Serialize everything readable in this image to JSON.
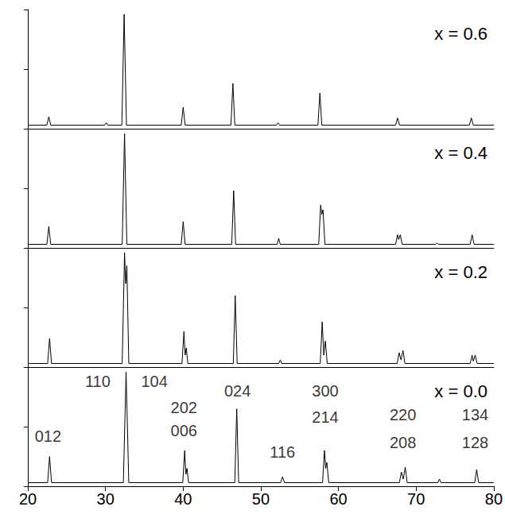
{
  "chart_data": {
    "type": "line",
    "xlim": [
      20,
      80
    ],
    "xticks": [
      20,
      30,
      40,
      50,
      60,
      70,
      80
    ],
    "ylim": [
      0,
      100
    ],
    "yticks": [
      0,
      50,
      100
    ],
    "tick_labels": "x",
    "grid": false,
    "color": "#000000",
    "series": [
      {
        "name": "x = 0.6",
        "x": [
          20,
          22.45,
          22.7,
          22.95,
          29.9,
          30.1,
          30.3,
          32.1,
          32.4,
          32.7,
          39.75,
          40.0,
          40.25,
          46.15,
          46.4,
          46.65,
          52.0,
          52.2,
          52.4,
          57.35,
          57.6,
          57.85,
          67.35,
          67.6,
          67.85,
          76.85,
          77.1,
          77.35,
          80
        ],
        "values": [
          3,
          3,
          10,
          3,
          3,
          5,
          3,
          3,
          96,
          3,
          3,
          18,
          3,
          3,
          38,
          3,
          3,
          5,
          3,
          3,
          30,
          3,
          3,
          9,
          3,
          3,
          9,
          3,
          3
        ]
      },
      {
        "name": "x = 0.4",
        "x": [
          20,
          22.45,
          22.7,
          22.95,
          32.15,
          32.45,
          32.75,
          39.75,
          40.0,
          40.25,
          46.25,
          46.5,
          46.75,
          52.1,
          52.3,
          52.5,
          57.45,
          57.7,
          57.85,
          58.0,
          58.25,
          67.35,
          67.6,
          67.75,
          67.95,
          68.2,
          72.5,
          72.7,
          72.9,
          76.95,
          77.2,
          77.45,
          80
        ],
        "values": [
          3,
          3,
          18,
          3,
          3,
          96,
          3,
          3,
          22,
          3,
          3,
          48,
          3,
          3,
          8,
          3,
          3,
          36,
          28,
          32,
          3,
          3,
          11,
          7,
          11,
          3,
          3,
          4,
          3,
          3,
          11,
          3,
          3
        ]
      },
      {
        "name": "x = 0.2",
        "x": [
          20,
          22.55,
          22.8,
          23.05,
          32.15,
          32.45,
          32.6,
          32.75,
          33.0,
          39.85,
          40.1,
          40.25,
          40.4,
          40.6,
          46.45,
          46.7,
          46.95,
          52.3,
          52.5,
          52.7,
          57.65,
          57.9,
          58.1,
          58.3,
          58.55,
          67.55,
          67.8,
          68.05,
          68.3,
          68.55,
          76.95,
          77.2,
          77.35,
          77.6,
          77.85,
          80
        ],
        "values": [
          3,
          3,
          24,
          3,
          3,
          96,
          70,
          85,
          3,
          3,
          30,
          10,
          16,
          3,
          3,
          60,
          3,
          3,
          6,
          3,
          3,
          38,
          10,
          22,
          3,
          3,
          12,
          6,
          14,
          3,
          3,
          10,
          5,
          10,
          3,
          3
        ]
      },
      {
        "name": "x = 0.0",
        "x": [
          20,
          22.55,
          22.8,
          23.05,
          32.3,
          32.65,
          33.0,
          39.95,
          40.2,
          40.35,
          40.5,
          40.7,
          46.65,
          46.9,
          47.15,
          52.55,
          52.8,
          53.05,
          57.95,
          58.2,
          58.35,
          58.5,
          58.75,
          67.85,
          68.1,
          68.35,
          68.6,
          68.85,
          72.8,
          73.0,
          73.2,
          77.55,
          77.8,
          78.05,
          80
        ],
        "values": [
          3,
          3,
          25,
          3,
          3,
          96,
          3,
          3,
          30,
          10,
          15,
          3,
          3,
          65,
          3,
          3,
          8,
          3,
          3,
          30,
          15,
          20,
          3,
          3,
          12,
          6,
          16,
          3,
          3,
          6,
          3,
          3,
          14,
          3,
          3
        ],
        "annotations": [
          {
            "text": "012",
            "x": 22.6,
            "y": 42
          },
          {
            "text": "110",
            "x": 29.0,
            "y": 88
          },
          {
            "text": "104",
            "x": 36.3,
            "y": 88
          },
          {
            "text": "202",
            "x": 40.1,
            "y": 66
          },
          {
            "text": "006",
            "x": 40.1,
            "y": 47
          },
          {
            "text": "024",
            "x": 47.0,
            "y": 80
          },
          {
            "text": "116",
            "x": 52.8,
            "y": 29
          },
          {
            "text": "300",
            "x": 58.3,
            "y": 80
          },
          {
            "text": "214",
            "x": 58.3,
            "y": 58
          },
          {
            "text": "220",
            "x": 68.3,
            "y": 60
          },
          {
            "text": "208",
            "x": 68.3,
            "y": 37
          },
          {
            "text": "134",
            "x": 77.6,
            "y": 60
          },
          {
            "text": "128",
            "x": 77.6,
            "y": 37
          }
        ]
      }
    ]
  }
}
